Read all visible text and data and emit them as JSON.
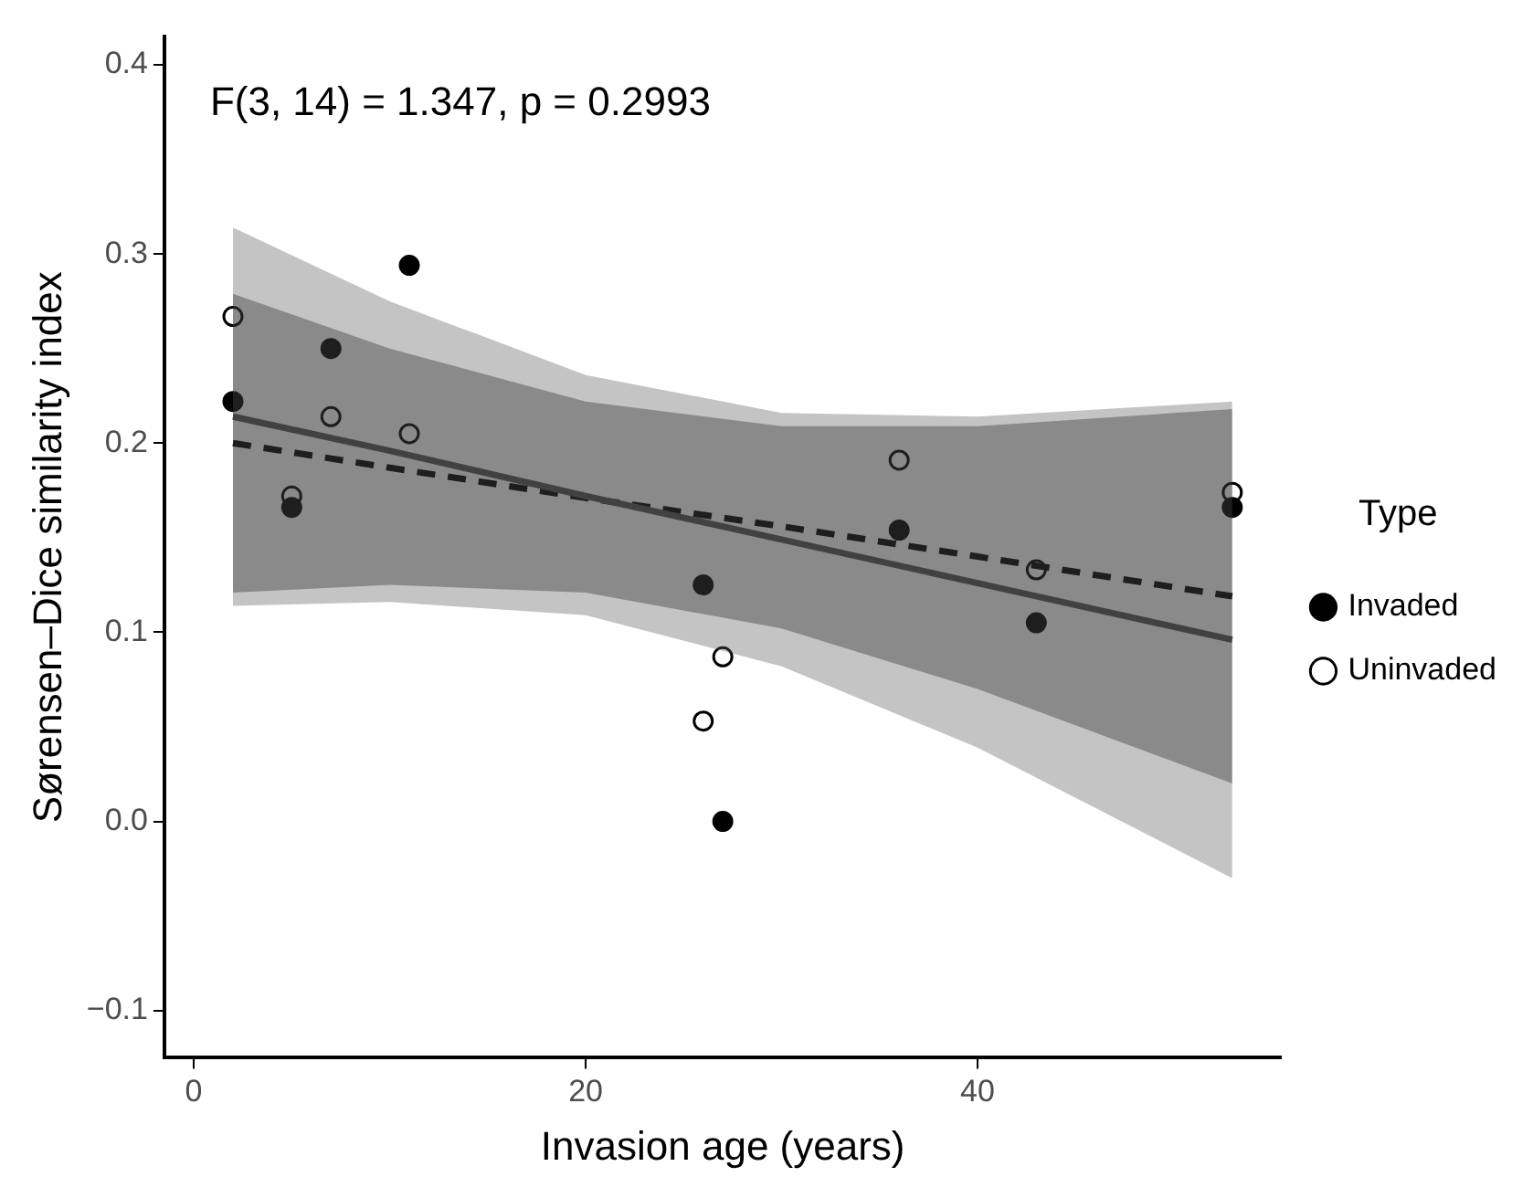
{
  "chart_data": {
    "type": "scatter",
    "xlabel": "Invasion age (years)",
    "ylabel": "Sørensen–Dice similarity index",
    "legend_title": "Type",
    "annotations": [
      "F(3, 14) = 1.347, p = 0.2993"
    ],
    "xlim": [
      -1.5,
      55.5
    ],
    "xticks": [
      0,
      20,
      40
    ],
    "ylim": [
      -0.125,
      0.415
    ],
    "yticks": [
      {
        "value": -0.1,
        "label": "−0.1"
      },
      {
        "value": 0,
        "label": "0.0"
      },
      0.1,
      0.2,
      0.3,
      0.4
    ],
    "grid": false,
    "legend": "right",
    "marker": "circle",
    "series": [
      {
        "type": "line",
        "marker": "none",
        "color": "#555555",
        "line_style": "solid",
        "x": [
          2,
          10,
          20,
          30,
          40,
          53
        ],
        "values": [
          0.214,
          0.196,
          0.172,
          0.149,
          0.126,
          0.096
        ],
        "lower": [
          0.114,
          0.116,
          0.109,
          0.082,
          0.039,
          -0.03
        ],
        "upper": [
          0.314,
          0.275,
          0.236,
          0.216,
          0.214,
          0.222
        ]
      },
      {
        "type": "line",
        "marker": "none",
        "color": "#000000",
        "line_style": "dashed",
        "x": [
          2,
          10,
          20,
          30,
          40,
          53
        ],
        "values": [
          0.2,
          0.187,
          0.171,
          0.156,
          0.14,
          0.119
        ],
        "lower": [
          0.121,
          0.125,
          0.121,
          0.102,
          0.07,
          0.02
        ],
        "upper": [
          0.279,
          0.25,
          0.222,
          0.209,
          0.209,
          0.218
        ]
      },
      {
        "name": "Invaded",
        "color": "#000000",
        "x": [
          2,
          5,
          7,
          11,
          26,
          27,
          36,
          43,
          53
        ],
        "values": [
          0.222,
          0.166,
          0.25,
          0.294,
          0.125,
          0.0,
          0.154,
          0.105,
          0.166
        ]
      },
      {
        "name": "Uninvaded",
        "color": "#ffffff",
        "x": [
          2,
          5,
          7,
          11,
          26,
          27,
          36,
          43,
          53
        ],
        "values": [
          0.267,
          0.172,
          0.214,
          0.205,
          0.053,
          0.087,
          0.191,
          0.133,
          0.174
        ]
      }
    ]
  }
}
